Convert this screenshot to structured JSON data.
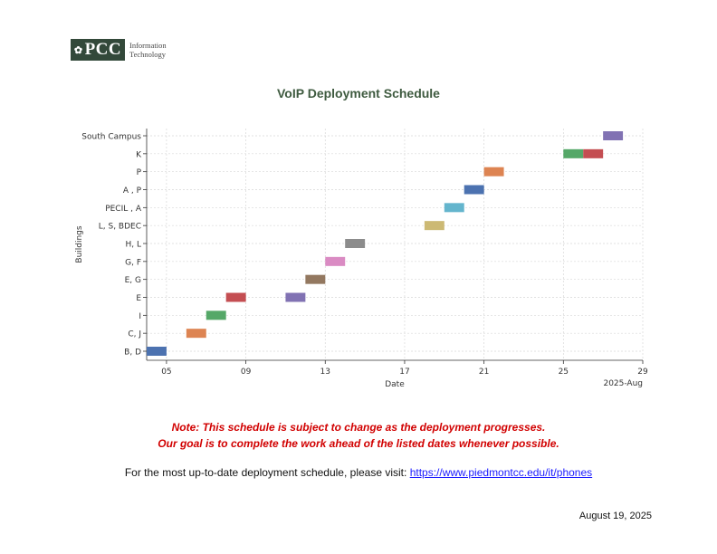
{
  "logo": {
    "mark": "PCC",
    "line1": "Information",
    "line2": "Technology"
  },
  "title": "VoIP Deployment Schedule",
  "chart_data": {
    "type": "gantt",
    "xlabel": "Date",
    "ylabel": "Buildings",
    "x_ticks": [
      "05",
      "09",
      "13",
      "17",
      "21",
      "25",
      "29"
    ],
    "x_tick_days": [
      5,
      9,
      13,
      17,
      21,
      25,
      29
    ],
    "x_offset_label": "2025-Aug",
    "xlim": [
      "2025-08-04",
      "2025-08-29"
    ],
    "grid": true,
    "tasks": [
      {
        "building": "B, D",
        "start": "2025-08-04",
        "end": "2025-08-05",
        "color": "#4c72b0"
      },
      {
        "building": "C, J",
        "start": "2025-08-06",
        "end": "2025-08-07",
        "color": "#dd8452"
      },
      {
        "building": "I",
        "start": "2025-08-07",
        "end": "2025-08-08",
        "color": "#55a868"
      },
      {
        "building": "E",
        "start": "2025-08-08",
        "end": "2025-08-09",
        "color": "#c44e52"
      },
      {
        "building": "E",
        "start": "2025-08-11",
        "end": "2025-08-12",
        "color": "#8172b3"
      },
      {
        "building": "E, G",
        "start": "2025-08-12",
        "end": "2025-08-13",
        "color": "#937860"
      },
      {
        "building": "G, F",
        "start": "2025-08-13",
        "end": "2025-08-14",
        "color": "#da8bc3"
      },
      {
        "building": "H, L",
        "start": "2025-08-14",
        "end": "2025-08-15",
        "color": "#8c8c8c"
      },
      {
        "building": "L, S, BDEC",
        "start": "2025-08-18",
        "end": "2025-08-19",
        "color": "#ccb974"
      },
      {
        "building": "PECIL , A",
        "start": "2025-08-19",
        "end": "2025-08-20",
        "color": "#64b5cd"
      },
      {
        "building": "A , P",
        "start": "2025-08-20",
        "end": "2025-08-21",
        "color": "#4c72b0"
      },
      {
        "building": "P",
        "start": "2025-08-21",
        "end": "2025-08-22",
        "color": "#dd8452"
      },
      {
        "building": "K",
        "start": "2025-08-25",
        "end": "2025-08-26",
        "color": "#55a868"
      },
      {
        "building": "K",
        "start": "2025-08-26",
        "end": "2025-08-27",
        "color": "#c44e52"
      },
      {
        "building": "South Campus",
        "start": "2025-08-27",
        "end": "2025-08-28",
        "color": "#8172b3"
      }
    ],
    "categories": [
      "B, D",
      "C, J",
      "I",
      "E",
      "E, G",
      "G, F",
      "H, L",
      "L, S, BDEC",
      "PECIL , A",
      "A , P",
      "P",
      "K",
      "South Campus"
    ]
  },
  "note": {
    "line1": "Note: This schedule is subject to change as the deployment progresses.",
    "line2": "Our goal is to complete the work ahead of the listed dates whenever possible."
  },
  "visit": {
    "text": "For the most up-to-date deployment schedule, please visit: ",
    "link": "https://www.piedmontcc.edu/it/phones"
  },
  "date": "August 19, 2025"
}
